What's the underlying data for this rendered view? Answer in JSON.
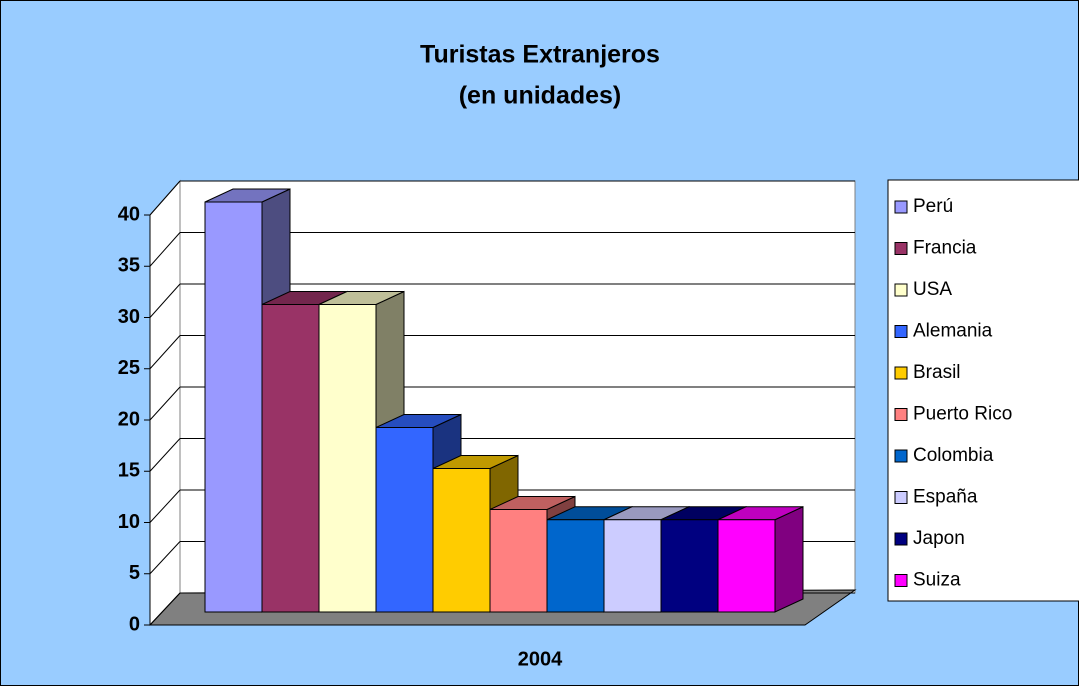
{
  "chart_data": {
    "type": "bar3d",
    "title": [
      "Turistas Extranjeros",
      "(en unidades)"
    ],
    "categories": [
      "2004"
    ],
    "series": [
      {
        "name": "Perú",
        "color": "#9999ff",
        "values": [
          40
        ]
      },
      {
        "name": "Francia",
        "color": "#993366",
        "values": [
          30
        ]
      },
      {
        "name": "USA",
        "color": "#ffffcc",
        "values": [
          30
        ]
      },
      {
        "name": "Alemania",
        "color": "#3366ff",
        "values": [
          18
        ]
      },
      {
        "name": "Brasil",
        "color": "#ffcc00",
        "values": [
          14
        ]
      },
      {
        "name": "Puerto Rico",
        "color": "#ff8080",
        "values": [
          10
        ]
      },
      {
        "name": "Colombia",
        "color": "#0066cc",
        "values": [
          9
        ]
      },
      {
        "name": "España",
        "color": "#ccccff",
        "values": [
          9
        ]
      },
      {
        "name": "Japon",
        "color": "#000080",
        "values": [
          9
        ]
      },
      {
        "name": "Suiza",
        "color": "#ff00ff",
        "values": [
          9
        ]
      }
    ],
    "ylim": [
      0,
      40
    ],
    "yticks": [
      0,
      5,
      10,
      15,
      20,
      25,
      30,
      35,
      40
    ],
    "grid": true,
    "legend": "right"
  }
}
